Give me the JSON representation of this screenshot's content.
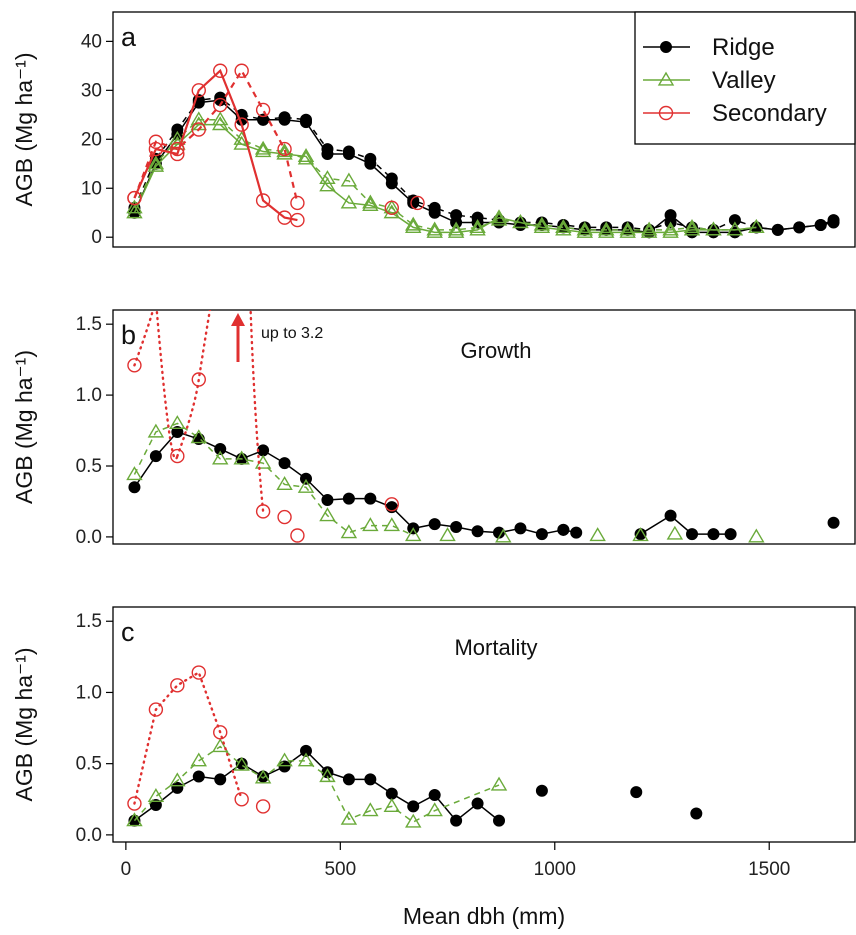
{
  "colors": {
    "ridge": "#000000",
    "valley": "#6aaa3a",
    "secondary": "#e03030"
  },
  "legend": {
    "entries": [
      {
        "key": "ridge",
        "label": "Ridge",
        "marker": "filled-circle"
      },
      {
        "key": "valley",
        "label": "Valley",
        "marker": "open-triangle"
      },
      {
        "key": "secondary",
        "label": "Secondary",
        "marker": "open-circle"
      }
    ]
  },
  "x_axis": {
    "label": "Mean dbh (mm)",
    "ticks": [
      0,
      500,
      1000,
      1500
    ],
    "range": [
      -30,
      1700
    ]
  },
  "chart_data": [
    {
      "type": "line",
      "panel": "a",
      "letter": "a",
      "title": "",
      "ylabel": "AGB (Mg ha⁻¹)",
      "ylim": [
        -2,
        46
      ],
      "yticks": [
        0,
        10,
        20,
        30,
        40
      ],
      "series": [
        {
          "key": "ridge",
          "style": "solid",
          "x": [
            20,
            70,
            120,
            170,
            220,
            270,
            320,
            370,
            420,
            470,
            520,
            570,
            620,
            670,
            720,
            770,
            820,
            870,
            920,
            970,
            1020,
            1070,
            1120,
            1170,
            1220,
            1270,
            1320,
            1370,
            1420,
            1470,
            1520,
            1570,
            1620,
            1650
          ],
          "y": [
            5,
            15,
            21,
            27.5,
            28,
            24,
            24,
            24,
            23.5,
            17,
            17,
            15,
            11,
            7,
            5,
            3,
            3,
            3,
            2.5,
            2.5,
            2,
            1.5,
            1.5,
            1.5,
            1,
            4.5,
            1,
            1,
            1,
            2,
            1.5,
            2,
            2.5,
            3.5
          ]
        },
        {
          "key": "ridge",
          "style": "dashed",
          "x": [
            20,
            70,
            120,
            170,
            220,
            270,
            320,
            370,
            420,
            470,
            520,
            570,
            620,
            670,
            720,
            770,
            820,
            870,
            920,
            970,
            1020,
            1070,
            1120,
            1170,
            1220,
            1270,
            1320,
            1370,
            1420,
            1470,
            1520,
            1570,
            1620,
            1650
          ],
          "y": [
            6,
            16,
            22,
            28,
            28.5,
            25,
            24,
            24.5,
            24,
            18,
            17.5,
            16,
            12,
            7.5,
            6,
            4.5,
            4,
            3.5,
            3,
            3,
            2.5,
            2,
            2,
            2,
            1.5,
            3,
            2,
            1.5,
            3.5,
            2,
            1.5,
            2,
            2.5,
            3
          ]
        },
        {
          "key": "valley",
          "style": "solid",
          "x": [
            20,
            70,
            120,
            170,
            220,
            270,
            320,
            370,
            420,
            470,
            520,
            570,
            620,
            670,
            720,
            770,
            820,
            870,
            920,
            970,
            1020,
            1070,
            1120,
            1170,
            1220,
            1270,
            1320,
            1370,
            1420,
            1470
          ],
          "y": [
            5,
            14.5,
            19,
            23,
            23,
            19,
            17.5,
            17,
            16.5,
            10.5,
            7,
            6.5,
            5,
            2,
            1,
            1,
            1.5,
            4,
            3,
            2,
            1.5,
            1,
            1,
            1,
            1,
            1,
            1.5,
            1.5,
            1.5,
            2
          ]
        },
        {
          "key": "valley",
          "style": "dashed",
          "x": [
            20,
            70,
            120,
            170,
            220,
            270,
            320,
            370,
            420,
            470,
            520,
            570,
            620,
            670,
            720,
            770,
            820,
            870,
            920,
            970,
            1020,
            1070,
            1120,
            1170,
            1220,
            1270,
            1320,
            1370,
            1420,
            1470
          ],
          "y": [
            6,
            15,
            20,
            24,
            24,
            20,
            18,
            17.5,
            16,
            12,
            11.5,
            7,
            6,
            2.5,
            1.5,
            1.5,
            2,
            3.5,
            3,
            2.5,
            2,
            1.5,
            1.5,
            1.5,
            1.5,
            1.5,
            2,
            1.5,
            1.5,
            2
          ]
        },
        {
          "key": "secondary",
          "style": "solid",
          "x": [
            20,
            70,
            120,
            170,
            220,
            270,
            320,
            370,
            400
          ],
          "y": [
            8,
            18,
            17,
            30,
            34,
            23,
            7.5,
            4,
            3.5
          ]
        },
        {
          "key": "secondary",
          "style": "dashed",
          "x": [
            20,
            70,
            120,
            170,
            220,
            270,
            320,
            370,
            400
          ],
          "y": [
            8,
            19.5,
            18,
            22,
            27,
            34,
            26,
            18,
            7
          ]
        }
      ],
      "extra_points": [
        {
          "key": "secondary",
          "x": 620,
          "y": 6
        },
        {
          "key": "secondary",
          "x": 680,
          "y": 7
        }
      ]
    },
    {
      "type": "line",
      "panel": "b",
      "letter": "b",
      "title": "Growth",
      "ylabel": "AGB (Mg ha⁻¹)",
      "ylim": [
        -0.05,
        1.6
      ],
      "yticks": [
        0.0,
        0.5,
        1.0,
        1.5
      ],
      "note": "up to 3.2",
      "series": [
        {
          "key": "ridge",
          "style": "solid",
          "x": [
            20,
            70,
            120,
            170,
            220,
            270,
            320,
            370,
            420,
            470,
            520,
            570,
            620,
            670,
            720,
            770,
            820,
            870,
            920,
            970,
            1020
          ],
          "y": [
            0.35,
            0.57,
            0.74,
            0.69,
            0.62,
            0.55,
            0.61,
            0.52,
            0.41,
            0.26,
            0.27,
            0.27,
            0.21,
            0.06,
            0.09,
            0.07,
            0.04,
            0.03,
            0.06,
            0.02,
            0.05
          ],
          "segment": 1
        },
        {
          "key": "ridge",
          "style": "solid",
          "x": [
            1020,
            1050
          ],
          "y": [
            0.05,
            0.03
          ],
          "segment": 2
        },
        {
          "key": "ridge",
          "style": "solid",
          "x": [
            1200,
            1270,
            1320,
            1370,
            1410
          ],
          "y": [
            0.02,
            0.15,
            0.02,
            0.02,
            0.02
          ],
          "segment": 3
        },
        {
          "key": "ridge",
          "style": "points",
          "x": [
            1650
          ],
          "y": [
            0.1
          ]
        },
        {
          "key": "valley",
          "style": "dashed",
          "x": [
            20,
            70,
            120,
            170,
            220,
            270,
            320,
            370,
            420,
            470,
            520,
            570,
            620,
            670
          ],
          "y": [
            0.44,
            0.74,
            0.8,
            0.7,
            0.55,
            0.55,
            0.52,
            0.37,
            0.35,
            0.15,
            0.03,
            0.08,
            0.08,
            0.01
          ]
        },
        {
          "key": "valley",
          "style": "points",
          "x": [
            750,
            880,
            1100,
            1200,
            1280,
            1470
          ],
          "y": [
            0.01,
            0.0,
            0.01,
            0.01,
            0.02,
            0.0
          ]
        },
        {
          "key": "secondary",
          "style": "points",
          "x": [
            20,
            120,
            170,
            320,
            370,
            400,
            620
          ],
          "y": [
            1.21,
            0.57,
            1.11,
            0.18,
            0.14,
            0.01,
            0.23
          ]
        }
      ]
    },
    {
      "type": "line",
      "panel": "c",
      "letter": "c",
      "title": "Mortality",
      "ylabel": "AGB (Mg ha⁻¹)",
      "ylim": [
        -0.05,
        1.6
      ],
      "yticks": [
        0.0,
        0.5,
        1.0,
        1.5
      ],
      "series": [
        {
          "key": "ridge",
          "style": "solid",
          "x": [
            20,
            70,
            120,
            170,
            220,
            270,
            320,
            370,
            420,
            470,
            520,
            570,
            620,
            670,
            720,
            770,
            820,
            870
          ],
          "y": [
            0.1,
            0.21,
            0.33,
            0.41,
            0.39,
            0.5,
            0.41,
            0.48,
            0.59,
            0.44,
            0.39,
            0.39,
            0.29,
            0.2,
            0.28,
            0.1,
            0.22,
            0.1
          ]
        },
        {
          "key": "ridge",
          "style": "points",
          "x": [
            970,
            1190,
            1330
          ],
          "y": [
            0.31,
            0.3,
            0.15
          ]
        },
        {
          "key": "valley",
          "style": "dashed",
          "x": [
            20,
            70,
            120,
            170,
            220,
            270,
            320,
            370,
            420,
            470,
            520,
            570,
            620,
            670,
            720,
            870
          ],
          "y": [
            0.1,
            0.27,
            0.38,
            0.52,
            0.62,
            0.49,
            0.4,
            0.52,
            0.52,
            0.41,
            0.11,
            0.17,
            0.2,
            0.09,
            0.17,
            0.35
          ]
        },
        {
          "key": "secondary",
          "style": "points",
          "x": [
            20,
            70,
            120,
            170,
            220,
            270,
            320
          ],
          "y": [
            0.22,
            0.88,
            1.05,
            1.14,
            0.72,
            0.25,
            0.2
          ]
        }
      ]
    }
  ]
}
